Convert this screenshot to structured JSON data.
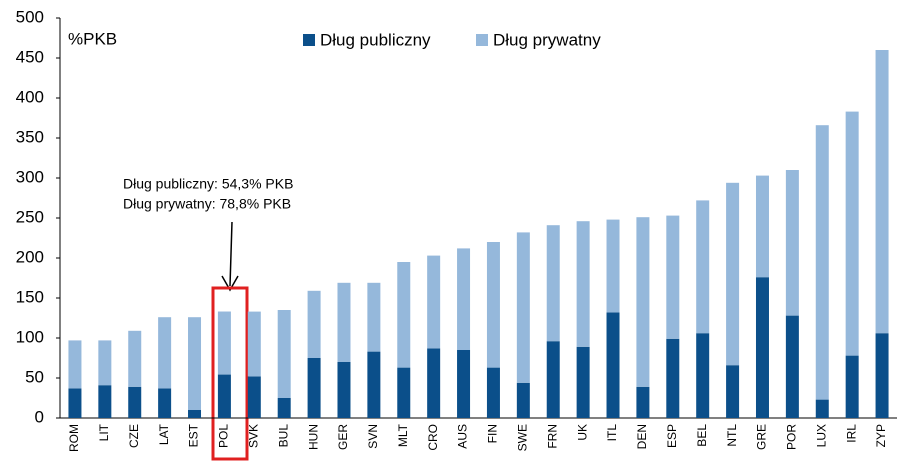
{
  "chart_data": {
    "type": "stacked_bar",
    "ylabel": "%PKB",
    "categories": [
      "ROM",
      "LIT",
      "CZE",
      "LAT",
      "EST",
      "POL",
      "SVK",
      "BUL",
      "HUN",
      "GER",
      "SVN",
      "MLT",
      "CRO",
      "AUS",
      "FIN",
      "SWE",
      "FRN",
      "UK",
      "ITL",
      "DEN",
      "ESP",
      "BEL",
      "NTL",
      "GRE",
      "POR",
      "LUX",
      "IRL",
      "ZYP"
    ],
    "series": [
      {
        "name": "Dług publiczny",
        "color": "#0b4f8a",
        "values": [
          37,
          41,
          39,
          37,
          10,
          54.3,
          52,
          25,
          75,
          70,
          83,
          63,
          87,
          85,
          63,
          44,
          96,
          89,
          132,
          39,
          99,
          106,
          66,
          176,
          128,
          23,
          78,
          106
        ]
      },
      {
        "name": "Dług prywatny",
        "color": "#95b8db",
        "values": [
          60,
          56,
          70,
          89,
          116,
          78.8,
          81,
          110,
          84,
          99,
          86,
          132,
          116,
          127,
          157,
          188,
          145,
          157,
          116,
          212,
          154,
          166,
          228,
          127,
          182,
          343,
          305,
          354
        ]
      }
    ],
    "ylim": [
      0,
      500
    ],
    "yticks": [
      0,
      50,
      100,
      150,
      200,
      250,
      300,
      350,
      400,
      450,
      500
    ],
    "annotations": [
      "Dług publiczny: 54,3% PKB",
      "Dług prywatny: 78,8% PKB"
    ]
  }
}
